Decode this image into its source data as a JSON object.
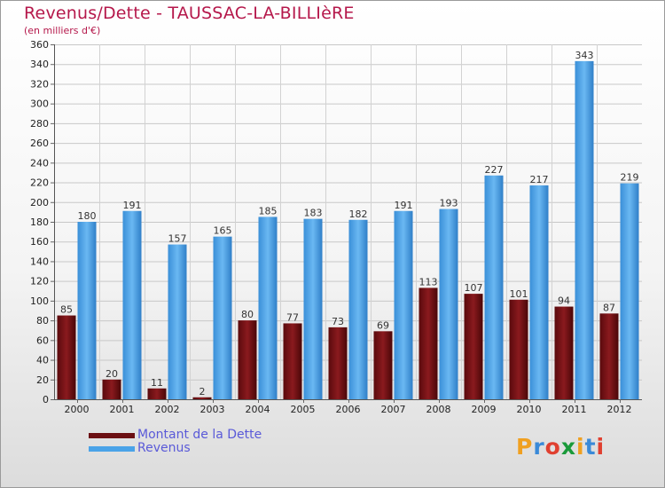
{
  "title": "Revenus/Dette - TAUSSAC-LA-BILLIèRE",
  "subtitle": "(en milliers d'€)",
  "chart_data": {
    "type": "bar",
    "categories": [
      "2000",
      "2001",
      "2002",
      "2003",
      "2004",
      "2005",
      "2006",
      "2007",
      "2008",
      "2009",
      "2010",
      "2011",
      "2012"
    ],
    "series": [
      {
        "name": "Montant de la Dette",
        "color": "#6b0f12",
        "values": [
          85,
          20,
          11,
          2,
          80,
          77,
          73,
          69,
          113,
          107,
          101,
          94,
          87
        ]
      },
      {
        "name": "Revenus",
        "color": "#4aa3e8",
        "values": [
          180,
          191,
          157,
          165,
          185,
          183,
          182,
          191,
          193,
          227,
          217,
          343,
          219
        ]
      }
    ],
    "ylim": [
      0,
      360
    ],
    "yticks": [
      0,
      20,
      40,
      60,
      80,
      100,
      120,
      140,
      160,
      180,
      200,
      220,
      240,
      260,
      280,
      300,
      320,
      340,
      360
    ],
    "grid": true,
    "legend_position": "bottom-left"
  },
  "legend": [
    {
      "label": "Montant de la Dette",
      "color": "#6b0f12"
    },
    {
      "label": "Revenus",
      "color": "#4aa3e8"
    }
  ],
  "logo": {
    "letters": [
      "P",
      "r",
      "o",
      "x",
      "i",
      "t",
      "i"
    ],
    "colors": [
      "#f0a020",
      "#3a8ad8",
      "#e04030",
      "#1a9a3a",
      "#f0a020",
      "#3a8ad8",
      "#e04030"
    ]
  }
}
